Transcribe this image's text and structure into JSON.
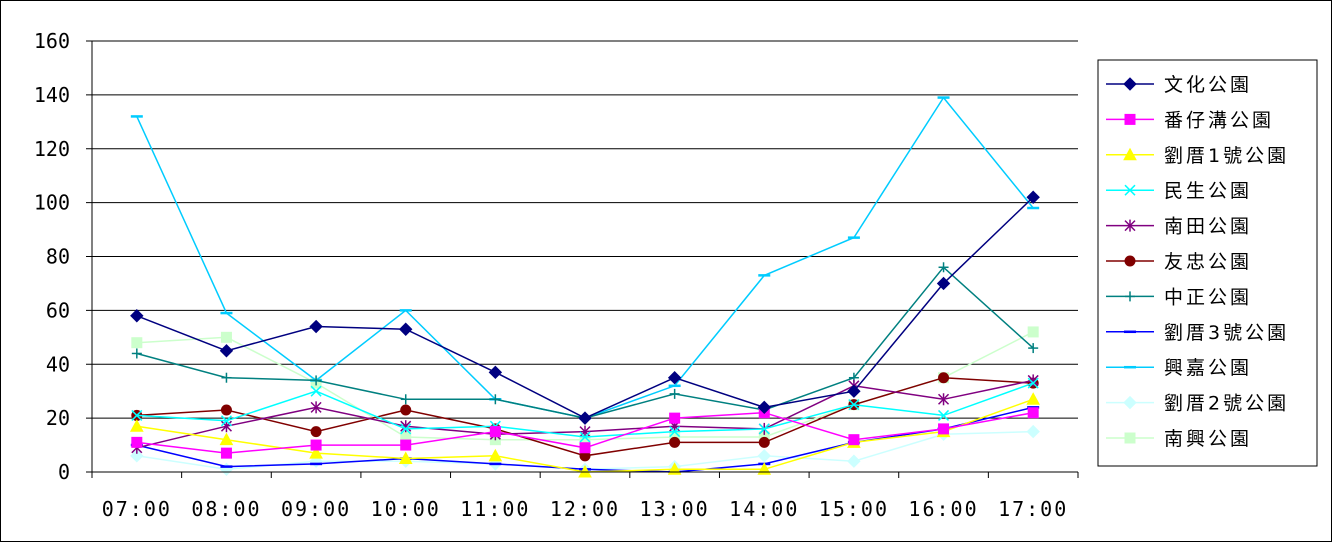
{
  "chart_data": {
    "type": "line",
    "title": "",
    "xlabel": "",
    "ylabel": "",
    "ylim": [
      0,
      160
    ],
    "yticks": [
      0,
      20,
      40,
      60,
      80,
      100,
      120,
      140,
      160
    ],
    "grid": true,
    "legend_position": "right",
    "categories": [
      "07:00",
      "08:00",
      "09:00",
      "10:00",
      "11:00",
      "12:00",
      "13:00",
      "14:00",
      "15:00",
      "16:00",
      "17:00"
    ],
    "series": [
      {
        "name": "文化公園",
        "color": "#000080",
        "marker": "diamond",
        "values": [
          58,
          45,
          54,
          53,
          37,
          20,
          35,
          24,
          30,
          70,
          102
        ]
      },
      {
        "name": "番仔溝公園",
        "color": "#FF00FF",
        "marker": "square",
        "values": [
          11,
          7,
          10,
          10,
          15,
          9,
          20,
          22,
          12,
          16,
          22
        ]
      },
      {
        "name": "劉厝1號公園",
        "color": "#FFFF00",
        "marker": "triangle",
        "values": [
          17,
          12,
          7,
          5,
          6,
          0,
          1,
          1,
          11,
          15,
          27
        ]
      },
      {
        "name": "民生公園",
        "color": "#00FFFF",
        "marker": "x",
        "values": [
          21,
          19,
          30,
          16,
          17,
          13,
          15,
          16,
          25,
          21,
          33
        ]
      },
      {
        "name": "南田公園",
        "color": "#800080",
        "marker": "star",
        "values": [
          9,
          17,
          24,
          17,
          14,
          15,
          17,
          16,
          32,
          27,
          34
        ]
      },
      {
        "name": "友忠公園",
        "color": "#800000",
        "marker": "circle",
        "values": [
          21,
          23,
          15,
          23,
          16,
          6,
          11,
          11,
          25,
          35,
          33
        ]
      },
      {
        "name": "中正公園",
        "color": "#008080",
        "marker": "plus",
        "values": [
          44,
          35,
          34,
          27,
          27,
          20,
          29,
          23,
          35,
          76,
          46
        ]
      },
      {
        "name": "劉厝3號公園",
        "color": "#0000FF",
        "marker": "dash",
        "values": [
          10,
          2,
          3,
          5,
          3,
          1,
          0,
          3,
          11,
          16,
          24
        ]
      },
      {
        "name": "興嘉公園",
        "color": "#00CCFF",
        "marker": "dash",
        "values": [
          132,
          59,
          34,
          60,
          27,
          20,
          32,
          73,
          87,
          139,
          98
        ]
      },
      {
        "name": "劉厝2號公園",
        "color": "#CCFFFF",
        "marker": "diamond",
        "values": [
          6,
          1,
          4,
          4,
          3,
          1,
          2,
          6,
          4,
          14,
          15
        ]
      },
      {
        "name": "南興公園",
        "color": "#CCFFCC",
        "marker": "square",
        "values": [
          48,
          50,
          33,
          13,
          12,
          12,
          13,
          13,
          25,
          35,
          52
        ]
      }
    ]
  }
}
